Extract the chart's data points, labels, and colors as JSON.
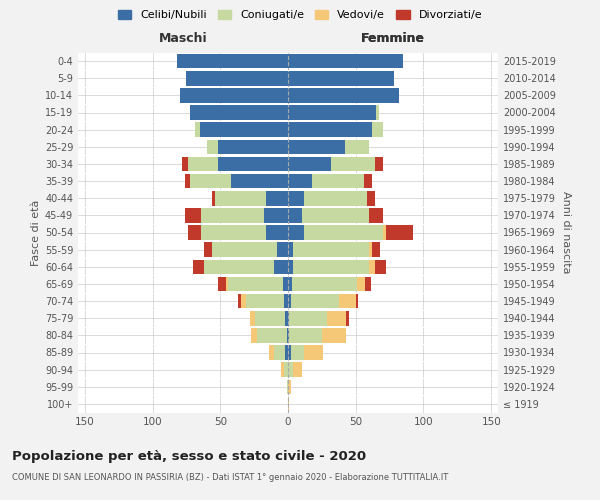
{
  "age_groups": [
    "100+",
    "95-99",
    "90-94",
    "85-89",
    "80-84",
    "75-79",
    "70-74",
    "65-69",
    "60-64",
    "55-59",
    "50-54",
    "45-49",
    "40-44",
    "35-39",
    "30-34",
    "25-29",
    "20-24",
    "15-19",
    "10-14",
    "5-9",
    "0-4"
  ],
  "birth_years": [
    "≤ 1919",
    "1920-1924",
    "1925-1929",
    "1930-1934",
    "1935-1939",
    "1940-1944",
    "1945-1949",
    "1950-1954",
    "1955-1959",
    "1960-1964",
    "1965-1969",
    "1970-1974",
    "1975-1979",
    "1980-1984",
    "1985-1989",
    "1990-1994",
    "1995-1999",
    "2000-2004",
    "2005-2009",
    "2010-2014",
    "2015-2019"
  ],
  "male_celibi": [
    0,
    0,
    0,
    2,
    1,
    2,
    3,
    4,
    10,
    8,
    16,
    18,
    16,
    42,
    52,
    52,
    65,
    72,
    80,
    75,
    82
  ],
  "male_coniugati": [
    0,
    1,
    3,
    8,
    22,
    22,
    28,
    40,
    52,
    48,
    48,
    46,
    38,
    30,
    22,
    8,
    4,
    0,
    0,
    0,
    0
  ],
  "male_vedovi": [
    0,
    0,
    2,
    4,
    4,
    4,
    4,
    2,
    0,
    0,
    0,
    0,
    0,
    0,
    0,
    0,
    0,
    0,
    0,
    0,
    0
  ],
  "male_divorziati": [
    0,
    0,
    0,
    0,
    0,
    0,
    2,
    6,
    8,
    6,
    10,
    12,
    2,
    4,
    4,
    0,
    0,
    0,
    0,
    0,
    0
  ],
  "female_celibi": [
    0,
    0,
    0,
    2,
    1,
    1,
    2,
    3,
    4,
    4,
    12,
    10,
    12,
    18,
    32,
    42,
    62,
    65,
    82,
    78,
    85
  ],
  "female_coniugati": [
    0,
    0,
    4,
    10,
    24,
    28,
    36,
    48,
    56,
    56,
    58,
    50,
    46,
    38,
    32,
    18,
    8,
    2,
    0,
    0,
    0
  ],
  "female_vedovi": [
    1,
    2,
    6,
    14,
    18,
    14,
    12,
    6,
    4,
    2,
    2,
    0,
    0,
    0,
    0,
    0,
    0,
    0,
    0,
    0,
    0
  ],
  "female_divorziati": [
    0,
    0,
    0,
    0,
    0,
    2,
    2,
    4,
    8,
    6,
    20,
    10,
    6,
    6,
    6,
    0,
    0,
    0,
    0,
    0,
    0
  ],
  "colors": {
    "celibi": "#3A6EA5",
    "coniugati": "#C5D9A0",
    "vedovi": "#F5C878",
    "divorziati": "#C0392B"
  },
  "xlim": 155,
  "title": "Popolazione per età, sesso e stato civile - 2020",
  "subtitle": "COMUNE DI SAN LEONARDO IN PASSIRIA (BZ) - Dati ISTAT 1° gennaio 2020 - Elaborazione TUTTITALIA.IT",
  "ylabel_left": "Fasce di età",
  "ylabel_right": "Anni di nascita",
  "xlabel_male": "Maschi",
  "xlabel_female": "Femmine",
  "legend_labels": [
    "Celibi/Nubili",
    "Coniugati/e",
    "Vedovi/e",
    "Divorziati/e"
  ],
  "bg_color": "#F2F2F2",
  "bar_bg_color": "#FFFFFF"
}
